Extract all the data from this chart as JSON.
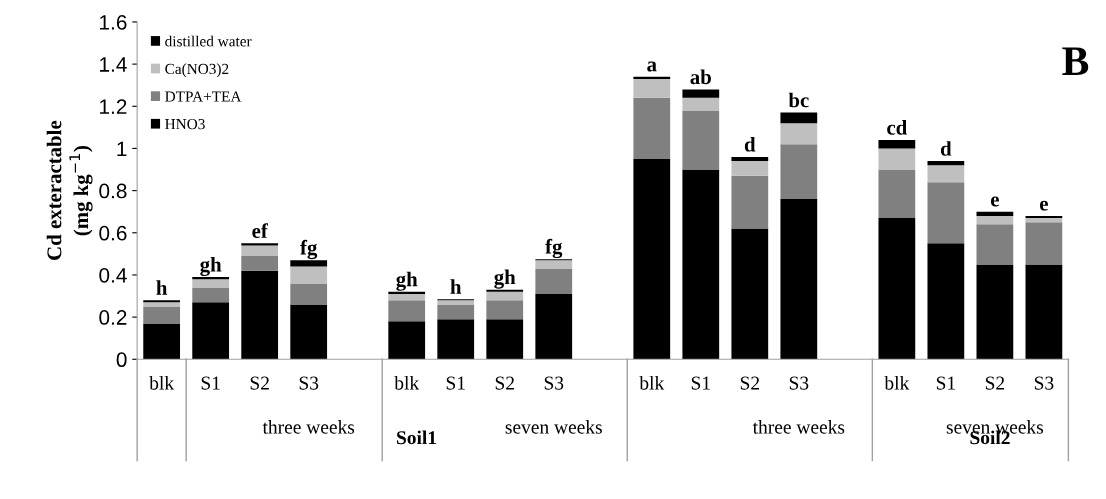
{
  "chart_data": {
    "type": "bar",
    "stacked": true,
    "ylabel": "Cd exteractable\n(mg kg$^{−1}$)",
    "categories": [
      "blk",
      "S1",
      "S2",
      "S3",
      null,
      "blk",
      "S1",
      "S2",
      "S3",
      null,
      "blk",
      "S1",
      "S2",
      "S3",
      null,
      "blk",
      "S1",
      "S2",
      "S3"
    ],
    "series": [
      {
        "name": "HNO3",
        "color": "#000000",
        "values": [
          0.17,
          0.27,
          0.42,
          0.26,
          null,
          0.18,
          0.19,
          0.19,
          0.31,
          null,
          0.95,
          0.9,
          0.62,
          0.76,
          null,
          0.67,
          0.55,
          0.45,
          0.45
        ]
      },
      {
        "name": "DTPA+TEA",
        "color": "#808080",
        "values": [
          0.08,
          0.07,
          0.07,
          0.1,
          null,
          0.1,
          0.07,
          0.09,
          0.12,
          null,
          0.29,
          0.28,
          0.25,
          0.26,
          null,
          0.23,
          0.29,
          0.19,
          0.2
        ]
      },
      {
        "name": "Ca(NO3)2",
        "color": "#bfbfbf",
        "values": [
          0.02,
          0.04,
          0.05,
          0.08,
          null,
          0.03,
          0.02,
          0.04,
          0.04,
          null,
          0.09,
          0.06,
          0.07,
          0.1,
          null,
          0.1,
          0.08,
          0.04,
          0.02
        ]
      },
      {
        "name": "distilled water",
        "color": "#000000",
        "values": [
          0.01,
          0.01,
          0.01,
          0.03,
          null,
          0.01,
          0.005,
          0.01,
          0.005,
          null,
          0.01,
          0.04,
          0.02,
          0.05,
          null,
          0.04,
          0.02,
          0.02,
          0.01
        ],
        "value_labels": [
          "h",
          "gh",
          "ef",
          "fg",
          null,
          "gh",
          "h",
          "gh",
          "fg",
          null,
          "a",
          "ab",
          "d",
          "bc",
          null,
          "cd",
          "d",
          "e",
          "e"
        ]
      }
    ],
    "ylim": [
      0,
      1.6
    ],
    "yticks": [
      0,
      0.2,
      0.4,
      0.6,
      0.8,
      1,
      1.2,
      1.4,
      1.6
    ],
    "legend": "top left",
    "grid": false,
    "annotations": [
      "three weeks",
      "seven weeks",
      "three weeks",
      "seven weeks",
      "Soil1",
      "Soil2",
      "B"
    ]
  }
}
